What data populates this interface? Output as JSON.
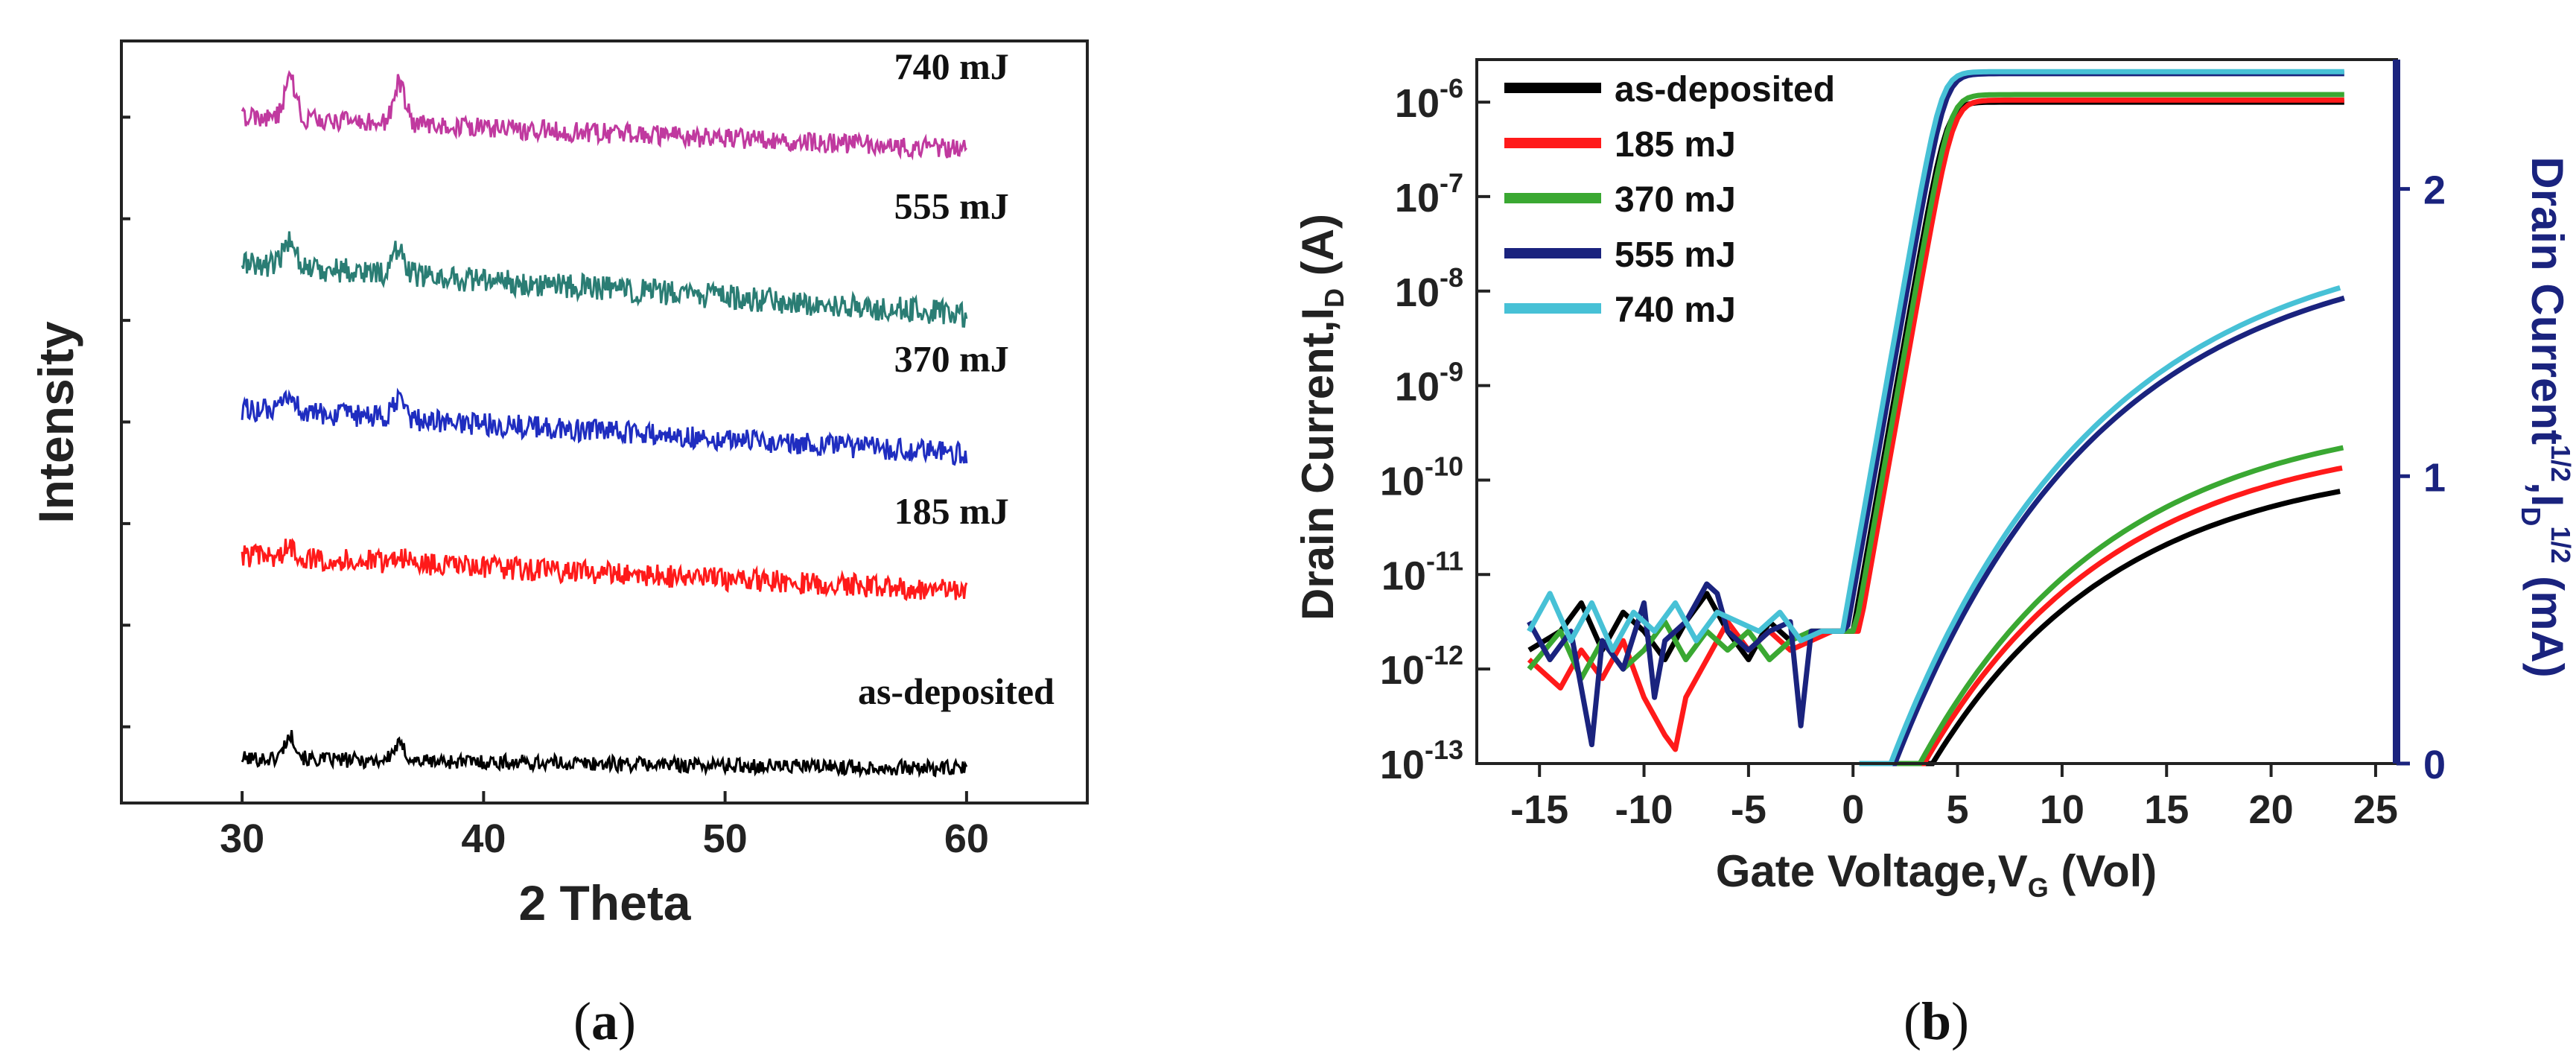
{
  "colors": {
    "black": "#000000",
    "red": "#ff1a1a",
    "blue": "#1f2dc0",
    "teal": "#2a7d74",
    "magenta": "#c0399f",
    "green": "#3aa832",
    "navy": "#1a237e",
    "cyan": "#47c1d6",
    "right_axis": "#1a237e"
  },
  "chart_data": [
    {
      "id": "a",
      "type": "line",
      "caption": "(a)",
      "caption_letter": "a",
      "xlabel": "2 Theta",
      "ylabel": "Intensity",
      "xlim": [
        25,
        65
      ],
      "ylim": [
        0,
        6
      ],
      "xticks": [
        30,
        40,
        50,
        60
      ],
      "xtick_labels": [
        "30",
        "40",
        "50",
        "60"
      ],
      "yminor_ticks": [
        0.6,
        1.4,
        2.2,
        3.0,
        3.8,
        4.6,
        5.4
      ],
      "x_range": [
        30,
        60
      ],
      "peaks": [
        32,
        36.5
      ],
      "series": [
        {
          "name": "as-deposited",
          "label": "as-deposited",
          "color": "#000000",
          "baseline": 0.35,
          "slope": 0.08,
          "noise": 0.06,
          "peak_heights": [
            0.18,
            0.12
          ],
          "label_x": 55.5,
          "label_y": 0.78
        },
        {
          "name": "185 mJ",
          "label": "185 mJ",
          "color": "#ff1a1a",
          "baseline": 1.95,
          "slope": 0.28,
          "noise": 0.09,
          "peak_heights": [
            0.08,
            0.06
          ],
          "label_x": 57,
          "label_y": 2.2
        },
        {
          "name": "370 mJ",
          "label": "370 mJ",
          "color": "#1f2dc0",
          "baseline": 3.1,
          "slope": 0.35,
          "noise": 0.09,
          "peak_heights": [
            0.12,
            0.14
          ],
          "label_x": 57,
          "label_y": 3.4
        },
        {
          "name": "555 mJ",
          "label": "555 mJ",
          "color": "#2a7d74",
          "baseline": 4.25,
          "slope": 0.4,
          "noise": 0.1,
          "peak_heights": [
            0.22,
            0.2
          ],
          "label_x": 57,
          "label_y": 4.6
        },
        {
          "name": "740 mJ",
          "label": "740 mJ",
          "color": "#c0399f",
          "baseline": 5.4,
          "slope": 0.25,
          "noise": 0.08,
          "peak_heights": [
            0.3,
            0.32
          ],
          "label_x": 57,
          "label_y": 5.7
        }
      ]
    },
    {
      "id": "b",
      "type": "line",
      "caption": "(b)",
      "caption_letter": "b",
      "xlabel_main": "Gate Voltage,V",
      "xlabel_sub": "G",
      "xlabel_tail": " (Vol)",
      "ylabel_left_main": "Drain Current,I",
      "ylabel_left_sub": "D",
      "ylabel_left_tail": " (A)",
      "ylabel_right_main": "Drain Current",
      "ylabel_right_sup": "1/2",
      "ylabel_right_mid": ",I",
      "ylabel_right_sub": "D",
      "ylabel_right_sup2": "1/2",
      "ylabel_right_tail": " (mA)",
      "xlim": [
        -18,
        26
      ],
      "ylim_log_exp": [
        -13,
        -5.55
      ],
      "ylim_sqrt": [
        0,
        2.45
      ],
      "xticks": [
        -15,
        -10,
        -5,
        0,
        5,
        10,
        15,
        20,
        25
      ],
      "xtick_labels": [
        "-15",
        "-10",
        "-5",
        "0",
        "5",
        "10",
        "15",
        "20",
        "25"
      ],
      "left_tick_exps": [
        -13,
        -12,
        -11,
        -10,
        -9,
        -8,
        -7,
        -6
      ],
      "left_tick_base": "10",
      "left_tick_sup": [
        "-13",
        "-12",
        "-11",
        "-10",
        "-9",
        "-8",
        "-7",
        "-6"
      ],
      "right_ticks": [
        0,
        1,
        2
      ],
      "right_tick_labels": [
        "0",
        "1",
        "2"
      ],
      "legend": [
        "as-deposited",
        "185 mJ",
        "370 mJ",
        "555 mJ",
        "740 mJ"
      ],
      "series": [
        {
          "name": "as-deposited",
          "color": "#000000",
          "vth": 0.0,
          "sat": 1e-06,
          "sqrt_start": 3.8,
          "sqrt_end": 0.95,
          "noise_x": [
            -15.5,
            -14,
            -13,
            -12,
            -11,
            -10,
            -9,
            -8,
            -7,
            -6,
            -5,
            -4,
            -3,
            -2,
            -1,
            -0.5
          ],
          "noise_logI": [
            -11.8,
            -11.6,
            -11.3,
            -11.8,
            -11.4,
            -11.6,
            -11.9,
            -11.5,
            -11.2,
            -11.6,
            -11.9,
            -11.5,
            -11.7,
            -11.6,
            -11.6,
            -11.6
          ]
        },
        {
          "name": "185 mJ",
          "color": "#ff1a1a",
          "vth": 0.3,
          "sat": 1.05e-06,
          "sqrt_start": 3.4,
          "sqrt_end": 1.03,
          "noise_x": [
            -15.5,
            -14,
            -13,
            -12,
            -11,
            -10,
            -9,
            -8.5,
            -8,
            -7,
            -6,
            -5,
            -4,
            -3,
            -2,
            -1,
            -0.5
          ],
          "noise_logI": [
            -11.9,
            -12.2,
            -11.8,
            -12.1,
            -11.7,
            -12.3,
            -12.7,
            -12.85,
            -12.3,
            -11.9,
            -11.5,
            -11.8,
            -11.6,
            -11.8,
            -11.7,
            -11.6,
            -11.6
          ]
        },
        {
          "name": "370 mJ",
          "color": "#3aa832",
          "vth": 0.1,
          "sat": 1.2e-06,
          "sqrt_start": 3.2,
          "sqrt_end": 1.1,
          "noise_x": [
            -15.5,
            -14,
            -13,
            -12,
            -11,
            -10,
            -9,
            -8,
            -7,
            -6,
            -5,
            -4,
            -3,
            -2,
            -1
          ],
          "noise_logI": [
            -12.0,
            -11.6,
            -12.1,
            -11.7,
            -12.0,
            -11.8,
            -11.5,
            -11.9,
            -11.6,
            -11.8,
            -11.6,
            -11.9,
            -11.7,
            -11.6,
            -11.6
          ]
        },
        {
          "name": "555 mJ",
          "color": "#1a237e",
          "vth": -0.3,
          "sat": 2e-06,
          "sqrt_start": 2.0,
          "sqrt_end": 1.62,
          "noise_x": [
            -15.5,
            -14.5,
            -13.5,
            -12.5,
            -12,
            -11,
            -10,
            -9.5,
            -9,
            -8,
            -7,
            -6.5,
            -6,
            -5,
            -4,
            -3,
            -2.5,
            -2,
            -1
          ],
          "noise_logI": [
            -11.5,
            -11.9,
            -11.6,
            -12.8,
            -11.7,
            -12.0,
            -11.3,
            -12.3,
            -11.7,
            -11.5,
            -11.1,
            -11.2,
            -11.6,
            -11.8,
            -11.6,
            -11.5,
            -12.6,
            -11.6,
            -11.6
          ]
        },
        {
          "name": "740 mJ",
          "color": "#47c1d6",
          "vth": -0.5,
          "sat": 2.1e-06,
          "sqrt_start": 1.8,
          "sqrt_end": 1.66,
          "noise_x": [
            -15.5,
            -14.5,
            -13.5,
            -12.5,
            -11.5,
            -10.5,
            -9.5,
            -8.5,
            -7.5,
            -6.5,
            -5.5,
            -4.5,
            -3.5,
            -2.5,
            -1.5,
            -1
          ],
          "noise_logI": [
            -11.6,
            -11.2,
            -11.7,
            -11.3,
            -11.8,
            -11.4,
            -11.6,
            -11.3,
            -11.7,
            -11.4,
            -11.5,
            -11.6,
            -11.4,
            -11.7,
            -11.6,
            -11.6
          ]
        }
      ]
    }
  ]
}
